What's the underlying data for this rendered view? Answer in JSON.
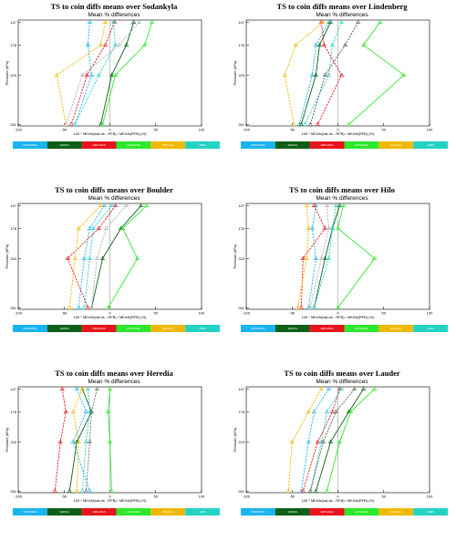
{
  "legend": [
    {
      "label": "PROSONDS",
      "color": "#1ab4ef"
    },
    {
      "label": "SHRSLS",
      "color": "#0d5f18"
    },
    {
      "label": "NRPLANAS",
      "color": "#e8141c"
    },
    {
      "label": "LMYSCANR",
      "color": "#2ce82c"
    },
    {
      "label": "NRS-fromt",
      "color": "#f0b800"
    },
    {
      "label": "ADRS",
      "color": "#24d2c3"
    }
  ],
  "chart_data": [
    {
      "type": "line",
      "title": "TS to coin diffs means over Sodankyla",
      "subtitle": "Mean % differences",
      "xlabel": "100 * MEAN(sat-ds - RFB) / MEAN(RFB) (%)",
      "ylabel": "Pressure (hPa)",
      "xlim": [
        -100,
        100
      ],
      "xticks": [
        -100,
        -50,
        0,
        50,
        100
      ],
      "yticks": [
        147,
        178,
        215,
        261
      ],
      "ylim": [
        261,
        147
      ],
      "series": [
        {
          "color": "#1ab4ef",
          "points": [
            [
              -22,
              147
            ],
            [
              -24,
              178
            ],
            [
              -20,
              215
            ],
            [
              -38,
              261
            ]
          ]
        },
        {
          "color": "#0d5f18",
          "points": [
            [
              26,
              147
            ],
            [
              18,
              178
            ],
            [
              2,
              215
            ],
            [
              -10,
              261
            ]
          ]
        },
        {
          "color": "#e8141c",
          "points": [
            [
              5,
              147
            ],
            [
              -5,
              178
            ],
            [
              -25,
              215
            ],
            [
              -42,
              261
            ]
          ]
        },
        {
          "color": "#2ce82c",
          "points": [
            [
              46,
              147
            ],
            [
              38,
              178
            ],
            [
              6,
              215
            ],
            [
              -8,
              261
            ]
          ]
        },
        {
          "color": "#f0b800",
          "points": [
            [
              -5,
              147
            ],
            [
              -10,
              178
            ],
            [
              -58,
              215
            ],
            [
              -48,
              261
            ]
          ]
        },
        {
          "color": "#24d2c3",
          "points": [
            [
              4,
              147
            ],
            [
              6,
              178
            ],
            [
              -12,
              215
            ],
            [
              -38,
              261
            ]
          ]
        },
        {
          "color": "#b0b0b0",
          "points": [
            [
              32,
              147
            ],
            [
              10,
              178
            ],
            [
              -30,
              215
            ],
            [
              -48,
              261
            ]
          ]
        }
      ]
    },
    {
      "type": "line",
      "title": "TS to coin diffs means over Lindenberg",
      "subtitle": "Mean % differences",
      "xlabel": "100 * MEAN(sat-ds - RFB) / MEAN(RFB) (%)",
      "ylabel": "Pressure (hPa)",
      "xlim": [
        -100,
        100
      ],
      "xticks": [
        -100,
        -50,
        0,
        50,
        100
      ],
      "yticks": [
        147,
        178,
        215,
        261
      ],
      "ylim": [
        261,
        147
      ],
      "series": [
        {
          "color": "#1ab4ef",
          "points": [
            [
              -10,
              147
            ],
            [
              -24,
              178
            ],
            [
              -28,
              215
            ],
            [
              -42,
              261
            ]
          ]
        },
        {
          "color": "#0d5f18",
          "points": [
            [
              -8,
              147
            ],
            [
              -20,
              178
            ],
            [
              -24,
              215
            ],
            [
              -40,
              261
            ]
          ]
        },
        {
          "color": "#e8141c",
          "points": [
            [
              -18,
              147
            ],
            [
              -15,
              178
            ],
            [
              4,
              215
            ],
            [
              -22,
              261
            ]
          ]
        },
        {
          "color": "#2ce82c",
          "points": [
            [
              46,
              147
            ],
            [
              28,
              178
            ],
            [
              72,
              215
            ],
            [
              12,
              261
            ]
          ]
        },
        {
          "color": "#f0b800",
          "points": [
            [
              -16,
              147
            ],
            [
              -46,
              178
            ],
            [
              -58,
              215
            ],
            [
              -48,
              261
            ]
          ]
        },
        {
          "color": "#24d2c3",
          "points": [
            [
              4,
              147
            ],
            [
              -6,
              178
            ],
            [
              -10,
              215
            ],
            [
              -36,
              261
            ]
          ]
        },
        {
          "color": "#606060",
          "points": [
            [
              22,
              147
            ],
            [
              8,
              178
            ],
            [
              -14,
              215
            ],
            [
              -30,
              261
            ]
          ]
        }
      ]
    },
    {
      "type": "line",
      "title": "TS to coin diffs means over Boulder",
      "subtitle": "Mean % differences",
      "xlabel": "100 * MEAN(sat-ds - RFB) / MEAN(RFB) (%)",
      "ylabel": "Pressure (hPa)",
      "xlim": [
        -100,
        100
      ],
      "xticks": [
        -100,
        -50,
        0,
        50,
        100
      ],
      "yticks": [
        147,
        178,
        215,
        261
      ],
      "ylim": [
        261,
        147
      ],
      "series": [
        {
          "color": "#1ab4ef",
          "points": [
            [
              -6,
              147
            ],
            [
              -22,
              178
            ],
            [
              -28,
              215
            ],
            [
              -34,
              261
            ]
          ]
        },
        {
          "color": "#0d5f18",
          "points": [
            [
              34,
              147
            ],
            [
              12,
              178
            ],
            [
              -8,
              215
            ],
            [
              -20,
              261
            ]
          ]
        },
        {
          "color": "#e8141c",
          "points": [
            [
              6,
              147
            ],
            [
              -12,
              178
            ],
            [
              -46,
              215
            ],
            [
              -24,
              261
            ]
          ]
        },
        {
          "color": "#2ce82c",
          "points": [
            [
              40,
              147
            ],
            [
              14,
              178
            ],
            [
              30,
              215
            ],
            [
              -2,
              261
            ]
          ]
        },
        {
          "color": "#f0b800",
          "points": [
            [
              -10,
              147
            ],
            [
              -34,
              178
            ],
            [
              -38,
              215
            ],
            [
              -44,
              261
            ]
          ]
        },
        {
          "color": "#24d2c3",
          "points": [
            [
              2,
              147
            ],
            [
              -18,
              178
            ],
            [
              -22,
              215
            ],
            [
              -28,
              261
            ]
          ]
        },
        {
          "color": "#b0b0b0",
          "points": [
            [
              18,
              147
            ],
            [
              -4,
              178
            ],
            [
              -14,
              215
            ],
            [
              -20,
              261
            ]
          ]
        }
      ]
    },
    {
      "type": "line",
      "title": "TS to coin diffs means over Hilo",
      "subtitle": "Mean % differences",
      "xlabel": "100 * MEAN(sat-ds - RFB) / MEAN(RFB) (%)",
      "ylabel": "Pressure (hPa)",
      "xlim": [
        -100,
        100
      ],
      "xticks": [
        -100,
        -50,
        0,
        50,
        100
      ],
      "yticks": [
        147,
        178,
        215,
        261
      ],
      "ylim": [
        261,
        147
      ],
      "series": [
        {
          "color": "#1ab4ef",
          "points": [
            [
              -24,
              147
            ],
            [
              -28,
              178
            ],
            [
              -24,
              215
            ],
            [
              -32,
              261
            ]
          ]
        },
        {
          "color": "#0d5f18",
          "points": [
            [
              2,
              147
            ],
            [
              -6,
              178
            ],
            [
              -14,
              215
            ],
            [
              -26,
              261
            ]
          ]
        },
        {
          "color": "#e8141c",
          "points": [
            [
              -26,
              147
            ],
            [
              -14,
              178
            ],
            [
              -38,
              215
            ],
            [
              -40,
              261
            ]
          ]
        },
        {
          "color": "#2ce82c",
          "points": [
            [
              6,
              147
            ],
            [
              0,
              178
            ],
            [
              40,
              215
            ],
            [
              0,
              261
            ]
          ]
        },
        {
          "color": "#f0b800",
          "points": [
            [
              -34,
              147
            ],
            [
              -32,
              178
            ],
            [
              -34,
              215
            ],
            [
              -44,
              261
            ]
          ]
        },
        {
          "color": "#24d2c3",
          "points": [
            [
              -2,
              147
            ],
            [
              -6,
              178
            ],
            [
              -10,
              215
            ],
            [
              -26,
              261
            ]
          ]
        },
        {
          "color": "#b0b0b0",
          "points": [
            [
              -12,
              147
            ],
            [
              -10,
              178
            ],
            [
              -18,
              215
            ],
            [
              -30,
              261
            ]
          ]
        }
      ]
    },
    {
      "type": "line",
      "title": "TS to coin diffs means over Heredia",
      "subtitle": "Mean % differences",
      "xlabel": "100 * MEAN(sat-ds - RFB) / MEAN(RFB) (%)",
      "ylabel": "Pressure (hPa)",
      "xlim": [
        -100,
        100
      ],
      "xticks": [
        -100,
        -50,
        0,
        50,
        100
      ],
      "yticks": [
        147,
        178,
        215,
        261
      ],
      "ylim": [
        261,
        147
      ],
      "series": [
        {
          "color": "#1ab4ef",
          "points": [
            [
              -36,
              147
            ],
            [
              -26,
              178
            ],
            [
              -40,
              215
            ],
            [
              -22,
              261
            ]
          ]
        },
        {
          "color": "#0d5f18",
          "points": [
            [
              -30,
              147
            ],
            [
              -20,
              178
            ],
            [
              -36,
              215
            ],
            [
              -44,
              261
            ]
          ]
        },
        {
          "color": "#e8141c",
          "points": [
            [
              -52,
              147
            ],
            [
              -48,
              178
            ],
            [
              -54,
              215
            ],
            [
              -60,
              261
            ]
          ]
        },
        {
          "color": "#2ce82c",
          "points": [
            [
              0,
              147
            ],
            [
              -2,
              178
            ],
            [
              0,
              215
            ],
            [
              2,
              261
            ]
          ]
        },
        {
          "color": "#f0b800",
          "points": [
            [
              -30,
              147
            ],
            [
              -40,
              178
            ],
            [
              -34,
              215
            ],
            [
              -36,
              261
            ]
          ]
        },
        {
          "color": "#24d2c3",
          "points": [
            [
              -24,
              147
            ],
            [
              -22,
              178
            ],
            [
              -26,
              215
            ],
            [
              -30,
              261
            ]
          ]
        },
        {
          "color": "#707070",
          "points": [
            [
              -14,
              147
            ],
            [
              -20,
              178
            ],
            [
              -22,
              215
            ],
            [
              -26,
              261
            ]
          ]
        }
      ]
    },
    {
      "type": "line",
      "title": "TS to coin diffs means over Lauder",
      "subtitle": "Mean % differences",
      "xlabel": "100 * MEAN(sat-ds - RFB) / MEAN(RFB) (%)",
      "ylabel": "Pressure (hPa)",
      "xlim": [
        -100,
        100
      ],
      "xticks": [
        -100,
        -50,
        0,
        50,
        100
      ],
      "yticks": [
        147,
        178,
        215,
        261
      ],
      "ylim": [
        261,
        147
      ],
      "series": [
        {
          "color": "#1ab4ef",
          "points": [
            [
              -10,
              147
            ],
            [
              -26,
              178
            ],
            [
              -32,
              215
            ],
            [
              -40,
              261
            ]
          ]
        },
        {
          "color": "#0d5f18",
          "points": [
            [
              28,
              147
            ],
            [
              12,
              178
            ],
            [
              -8,
              215
            ],
            [
              -24,
              261
            ]
          ]
        },
        {
          "color": "#e8141c",
          "points": [
            [
              2,
              147
            ],
            [
              -6,
              178
            ],
            [
              -22,
              215
            ],
            [
              -38,
              261
            ]
          ]
        },
        {
          "color": "#2ce82c",
          "points": [
            [
              40,
              147
            ],
            [
              14,
              178
            ],
            [
              2,
              215
            ],
            [
              -12,
              261
            ]
          ]
        },
        {
          "color": "#f0b800",
          "points": [
            [
              -18,
              147
            ],
            [
              -32,
              178
            ],
            [
              -50,
              215
            ],
            [
              -54,
              261
            ]
          ]
        },
        {
          "color": "#24d2c3",
          "points": [
            [
              4,
              147
            ],
            [
              -12,
              178
            ],
            [
              -18,
              215
            ],
            [
              -30,
              261
            ]
          ]
        },
        {
          "color": "#606060",
          "points": [
            [
              18,
              147
            ],
            [
              -2,
              178
            ],
            [
              -16,
              215
            ],
            [
              -30,
              261
            ]
          ]
        }
      ]
    }
  ]
}
